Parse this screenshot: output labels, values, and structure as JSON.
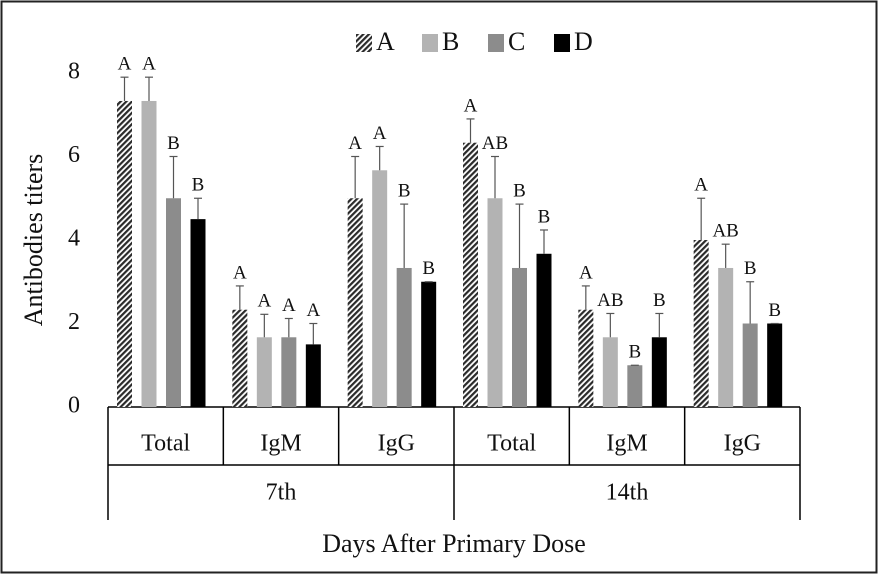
{
  "chart_data": {
    "type": "bar",
    "groups": [
      {
        "name": "7th",
        "categories": [
          "Total",
          "IgM",
          "IgG"
        ]
      },
      {
        "name": "14th",
        "categories": [
          "Total",
          "IgM",
          "IgG"
        ]
      }
    ],
    "series": [
      {
        "name": "A",
        "color": "#2a2a2a",
        "hatch": true,
        "values": [
          7.33,
          2.33,
          5.0,
          6.33,
          2.33,
          4.0
        ],
        "errors": [
          0.57,
          0.57,
          1.0,
          0.57,
          0.57,
          1.0
        ],
        "significance": [
          "A",
          "A",
          "A",
          "A",
          "A",
          "A"
        ]
      },
      {
        "name": "B",
        "color": "#b3b3b3",
        "hatch": false,
        "values": [
          7.33,
          1.67,
          5.67,
          5.0,
          1.67,
          3.33
        ],
        "errors": [
          0.57,
          0.55,
          0.57,
          1.0,
          0.57,
          0.57
        ],
        "significance": [
          "A",
          "A",
          "A",
          "AB",
          "AB",
          "AB"
        ]
      },
      {
        "name": "C",
        "color": "#8c8c8c",
        "hatch": false,
        "values": [
          5.0,
          1.67,
          3.33,
          3.33,
          1.0,
          2.0
        ],
        "errors": [
          1.0,
          0.45,
          1.53,
          1.53,
          0,
          1.0
        ],
        "significance": [
          "B",
          "A",
          "B",
          "B",
          "B",
          "B"
        ]
      },
      {
        "name": "D",
        "color": "#000000",
        "hatch": false,
        "values": [
          4.5,
          1.5,
          3.0,
          3.67,
          1.67,
          2.0
        ],
        "errors": [
          0.5,
          0.5,
          0,
          0.57,
          0.57,
          0
        ],
        "significance": [
          "B",
          "A",
          "B",
          "B",
          "B",
          "B"
        ]
      }
    ],
    "ylabel": "Antibodies titers",
    "xlabel": "Days After Primary Dose",
    "ylim": [
      0,
      8
    ],
    "yticks": [
      0,
      2,
      4,
      6,
      8
    ],
    "grid": false,
    "legend": "top"
  }
}
